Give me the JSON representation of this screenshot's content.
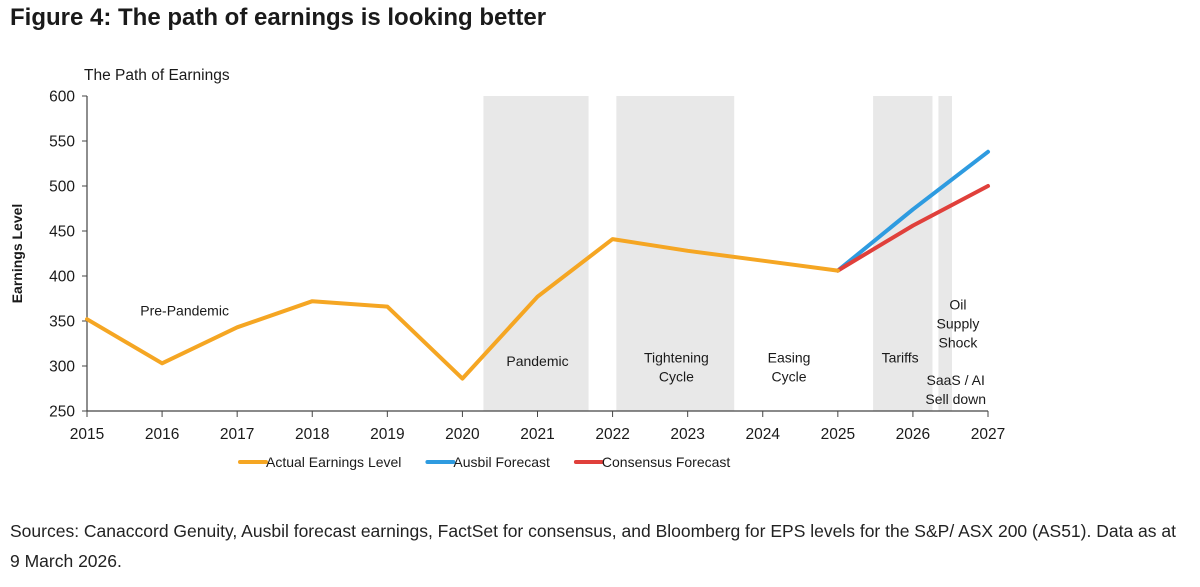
{
  "figure_title": "Figure 4: The path of earnings is looking better",
  "source_note": "Sources: Canaccord Genuity, Ausbil forecast earnings, FactSet for consensus, and Bloomberg for EPS levels for the S&P/ ASX 200 (AS51). Data as at 9 March 2026.",
  "chart_data": {
    "type": "line",
    "title": "The Path of Earnings",
    "xlabel": "",
    "ylabel": "Earnings Level",
    "xlim": [
      2015,
      2027
    ],
    "ylim": [
      250,
      600
    ],
    "x_ticks": [
      "2015",
      "2016",
      "2017",
      "2018",
      "2019",
      "2020",
      "2021",
      "2022",
      "2023",
      "2024",
      "2025",
      "2026",
      "2027"
    ],
    "y_ticks": [
      250,
      300,
      350,
      400,
      450,
      500,
      550,
      600
    ],
    "grid": false,
    "legend_position": "bottom",
    "series": [
      {
        "name": "Actual Earnings Level",
        "color": "#F5A623",
        "points": [
          [
            2015,
            352
          ],
          [
            2016,
            303
          ],
          [
            2017,
            343
          ],
          [
            2018,
            372
          ],
          [
            2019,
            366
          ],
          [
            2020,
            286
          ],
          [
            2021,
            377
          ],
          [
            2022,
            441
          ],
          [
            2023,
            428
          ],
          [
            2024,
            417
          ],
          [
            2025,
            406
          ]
        ]
      },
      {
        "name": "Ausbil Forecast",
        "color": "#2E9BE0",
        "points": [
          [
            2025,
            406
          ],
          [
            2026,
            474
          ],
          [
            2027,
            538
          ]
        ]
      },
      {
        "name": "Consensus Forecast",
        "color": "#E0403B",
        "points": [
          [
            2025,
            406
          ],
          [
            2026,
            456
          ],
          [
            2027,
            500
          ]
        ]
      }
    ],
    "shaded_periods": [
      {
        "label": "Pandemic",
        "start": 2020.28,
        "end": 2021.68
      },
      {
        "label": "Tightening Cycle",
        "start": 2022.05,
        "end": 2023.62
      },
      {
        "label": "Tariffs",
        "start": 2025.47,
        "end": 2026.26
      },
      {
        "label": "Oil Supply Shock",
        "start": 2026.34,
        "end": 2026.52
      }
    ],
    "annotations": [
      {
        "lines": [
          "Pre-Pandemic"
        ],
        "x": 2016.3,
        "y": 356
      },
      {
        "lines": [
          "Pandemic"
        ],
        "x": 2021.0,
        "y": 300
      },
      {
        "lines": [
          "Tightening",
          "Cycle"
        ],
        "x": 2022.85,
        "y": 304
      },
      {
        "lines": [
          "Easing",
          "Cycle"
        ],
        "x": 2024.35,
        "y": 304
      },
      {
        "lines": [
          "Tariffs"
        ],
        "x": 2025.83,
        "y": 304
      },
      {
        "lines": [
          "Oil",
          "Supply",
          "Shock"
        ],
        "x": 2026.6,
        "y": 363
      },
      {
        "lines": [
          "SaaS / AI",
          "Sell down"
        ],
        "x": 2026.57,
        "y": 279
      }
    ]
  }
}
